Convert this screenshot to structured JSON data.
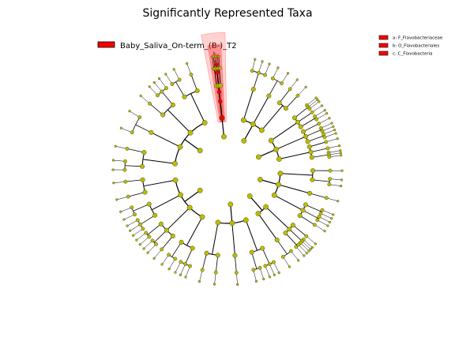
{
  "title": "Significantly Represented Taxa",
  "main_legend": {
    "label": "Baby_Saliva_On-term_(B-)_T2",
    "color": "#ff0000"
  },
  "clade_legend": [
    {
      "letter": "a",
      "text": "a: F_Flavobacteriaceae"
    },
    {
      "letter": "b",
      "text": "b: O_Flavobacteriales"
    },
    {
      "letter": "c",
      "text": "c: C_Flavobacteria"
    }
  ],
  "colors": {
    "node_nonsignificant": "#bbbb00",
    "node_significant": "#ff0000",
    "highlight_band": "#ff0000",
    "edge": "#000000"
  }
}
